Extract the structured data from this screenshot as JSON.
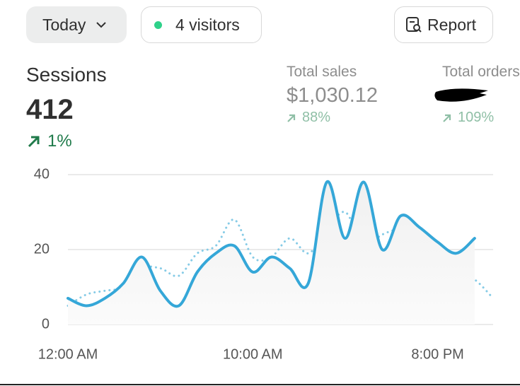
{
  "header": {
    "date_button": "Today",
    "visitors_button": "4 visitors",
    "report_button": "Report"
  },
  "metrics": [
    {
      "label": "Sessions",
      "value": "412",
      "change": "1%"
    },
    {
      "label": "Total sales",
      "value": "$1,030.12",
      "change": "88%"
    },
    {
      "label": "Total orders",
      "change": "109%"
    }
  ],
  "chart_data": {
    "type": "line",
    "categories": [
      "12:00 AM",
      null,
      null,
      null,
      null,
      null,
      null,
      null,
      null,
      null,
      "10:00 AM",
      null,
      null,
      null,
      null,
      null,
      null,
      null,
      null,
      null,
      "8:00 PM",
      null,
      null,
      null
    ],
    "series": [
      {
        "color": "#35a7d8",
        "style": "solid",
        "values": [
          7,
          5,
          7,
          11,
          18,
          9,
          5,
          14,
          19,
          21,
          14,
          18,
          15,
          11,
          38,
          23,
          38,
          20,
          29,
          26,
          22,
          19,
          23,
          null
        ]
      },
      {
        "color": "#86cbe6",
        "style": "dotted",
        "values": [
          5,
          8,
          9,
          10,
          15,
          15,
          13,
          19,
          21,
          28,
          18,
          18,
          23,
          19,
          25,
          30,
          21,
          24,
          25,
          20,
          16,
          14,
          12,
          7
        ]
      }
    ],
    "ylim": [
      0,
      40
    ],
    "yticks": [
      0,
      20,
      40
    ],
    "grid": true
  }
}
